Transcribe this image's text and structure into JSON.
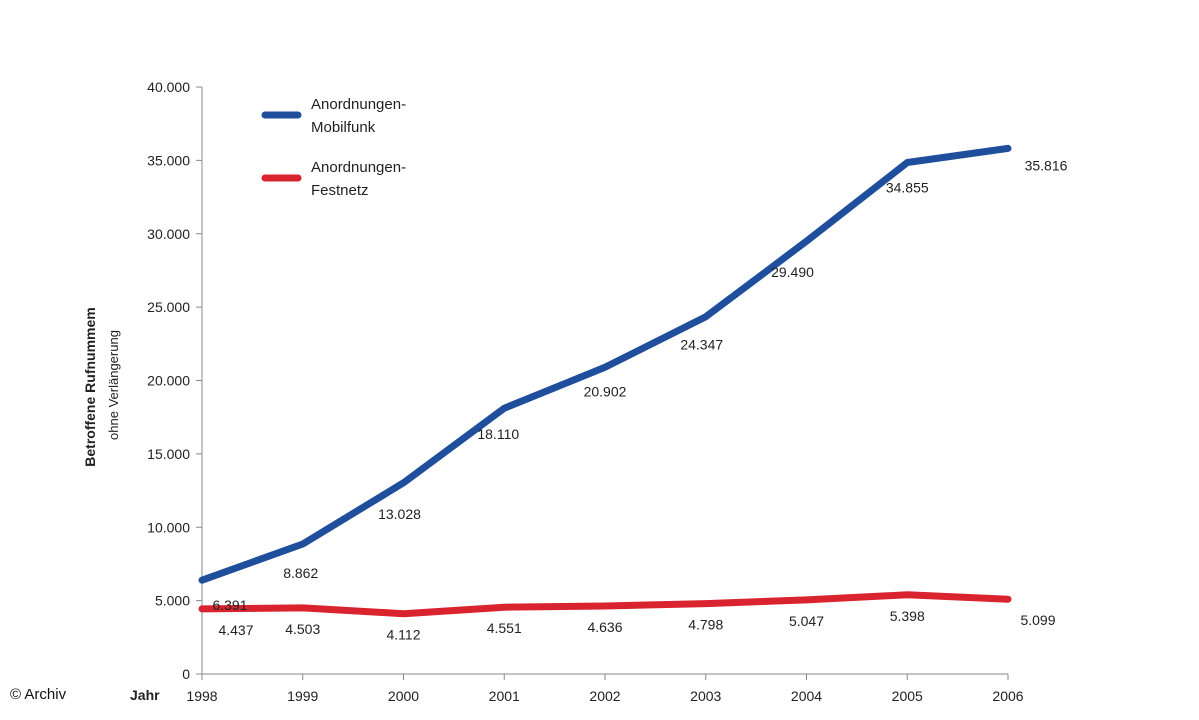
{
  "chart_data": {
    "type": "line",
    "x": [
      "1998",
      "1999",
      "2000",
      "2001",
      "2002",
      "2003",
      "2004",
      "2005",
      "2006"
    ],
    "xlabel": "Jahr",
    "ylabel": "Betroffene Rufnummem",
    "ylabel_sub": "ohne Verlängerung",
    "ylim": [
      0,
      40000
    ],
    "yticks": [
      "0",
      "5.000",
      "10.000",
      "15.000",
      "20.000",
      "25.000",
      "30.000",
      "35.000",
      "40.000"
    ],
    "legend_position": "top-left",
    "grid": false,
    "series": [
      {
        "name": "Anordnungen-Mobilfunk",
        "name_lines": [
          "Anordnungen-",
          "Mobilfunk"
        ],
        "color": "#1f4e9c",
        "values": [
          6391,
          8862,
          13028,
          18110,
          20902,
          24347,
          29490,
          34855,
          35816
        ],
        "labels": [
          "6.391",
          "8.862",
          "13.028",
          "18.110",
          "20.902",
          "24.347",
          "29.490",
          "34.855",
          "35.816"
        ]
      },
      {
        "name": "Anordnungen-Festnetz",
        "name_lines": [
          "Anordnungen-",
          "Festnetz"
        ],
        "color": "#d9232e",
        "values": [
          4437,
          4503,
          4112,
          4551,
          4636,
          4798,
          5047,
          5398,
          5099
        ],
        "labels": [
          "4.437",
          "4.503",
          "4.112",
          "4.551",
          "4.636",
          "4.798",
          "5.047",
          "5.398",
          "5.099"
        ]
      }
    ]
  },
  "credit": "© Archiv"
}
